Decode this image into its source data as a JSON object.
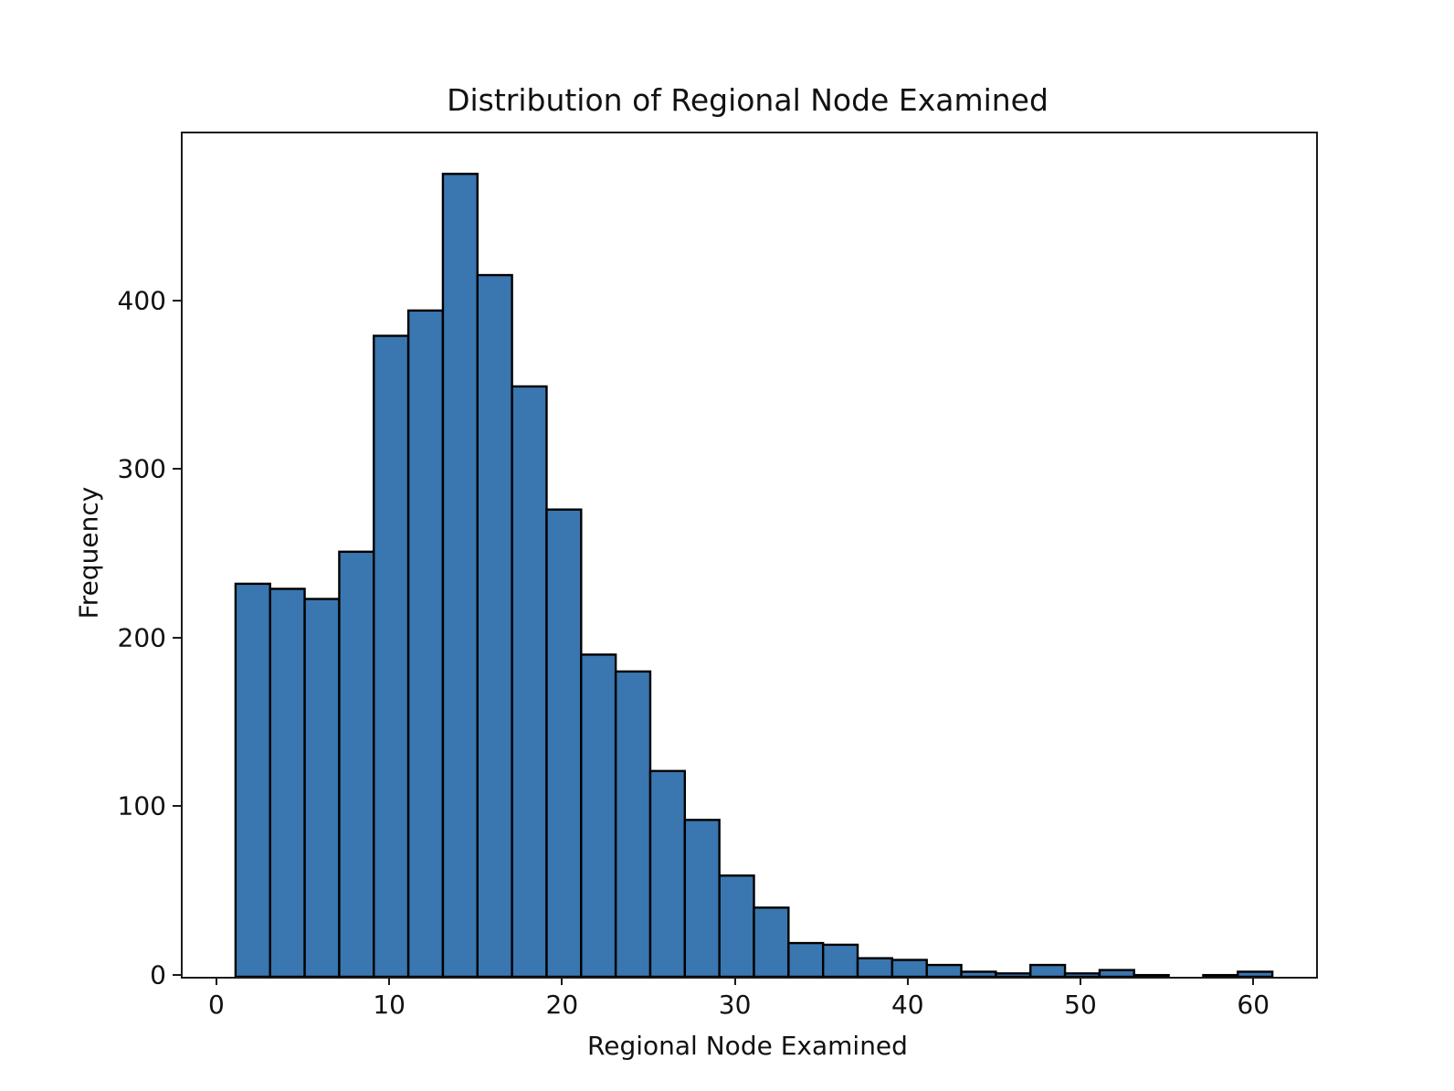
{
  "chart_data": {
    "type": "bar",
    "chart_kind": "histogram",
    "title": "Distribution of Regional Node Examined",
    "xlabel": "Regional Node Examined",
    "ylabel": "Frequency",
    "bin_edges": [
      1,
      3,
      5,
      7,
      9,
      11,
      13,
      15,
      17,
      19,
      21,
      23,
      25,
      27,
      29,
      31,
      33,
      35,
      37,
      39,
      41,
      43,
      45,
      47,
      49,
      51,
      53,
      55,
      57,
      59,
      61
    ],
    "frequencies": [
      233,
      230,
      224,
      252,
      380,
      395,
      476,
      416,
      350,
      277,
      191,
      181,
      122,
      93,
      60,
      41,
      20,
      19,
      11,
      10,
      7,
      3,
      2,
      7,
      2,
      4,
      1,
      0,
      1,
      3
    ],
    "xticks": [
      0,
      10,
      20,
      30,
      40,
      50,
      60
    ],
    "yticks": [
      0,
      100,
      200,
      300,
      400
    ],
    "xlim": [
      -2.06,
      63.53
    ],
    "ylim": [
      0,
      500
    ],
    "grid": false,
    "legend": "none",
    "bar_color": "#3a76af",
    "bar_edge_color": "#000000",
    "background_color": "#ffffff"
  }
}
